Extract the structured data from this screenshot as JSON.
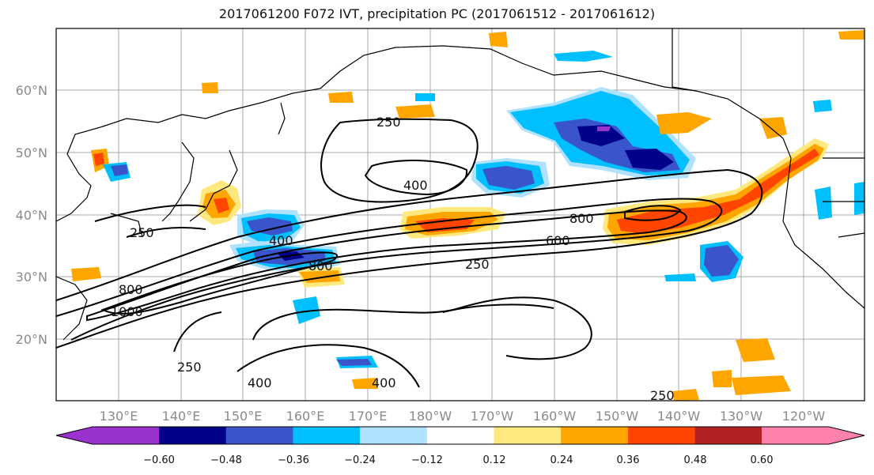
{
  "title": "2017061200 F072 IVT, precipitation PC (2017061512 - 2017061612)",
  "map": {
    "lon_labels": [
      "130°E",
      "140°E",
      "150°E",
      "160°E",
      "170°E",
      "180°W",
      "170°W",
      "160°W",
      "150°W",
      "140°W",
      "130°W",
      "120°W"
    ],
    "lat_labels": [
      "60°N",
      "50°N",
      "40°N",
      "30°N",
      "20°N"
    ],
    "contour_levels": [
      "250",
      "400",
      "600",
      "800",
      "1000"
    ],
    "contour_labels": [
      "250",
      "400",
      "250",
      "400",
      "800",
      "800",
      "600",
      "250",
      "1000",
      "800",
      "250",
      "400",
      "400",
      "250"
    ],
    "gridlines": true
  },
  "colorbar": {
    "ticks": [
      "−0.60",
      "−0.48",
      "−0.36",
      "−0.24",
      "−0.12",
      "0.12",
      "0.24",
      "0.36",
      "0.48",
      "0.60"
    ],
    "colors": [
      "#9a32cd",
      "#00008b",
      "#3a55cc",
      "#00bfff",
      "#b0e2ff",
      "#ffffff",
      "#ffe97f",
      "#ffa500",
      "#ff4500",
      "#b22222",
      "#ff82ab"
    ],
    "extend": "both"
  }
}
